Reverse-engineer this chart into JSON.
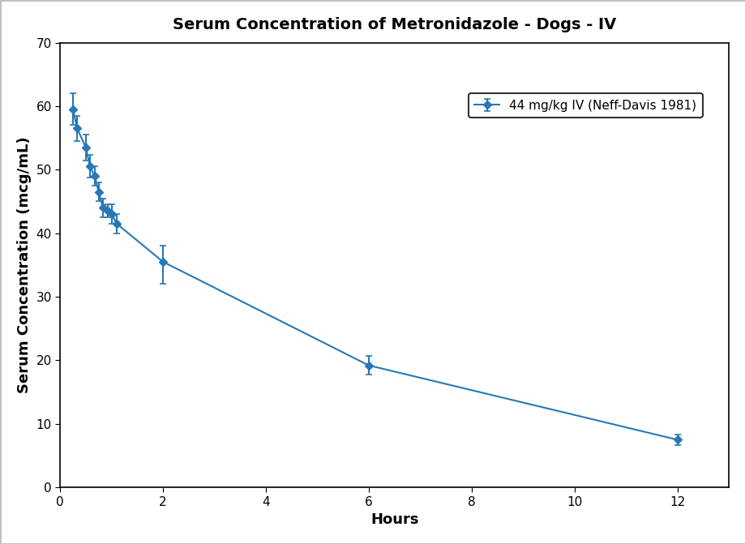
{
  "title": "Serum Concentration of Metronidazole - Dogs - IV",
  "xlabel": "Hours",
  "ylabel": "Serum Concentration (mcg/mL)",
  "legend_label": "44 mg/kg IV (Neff-Davis 1981)",
  "x": [
    0.25,
    0.33,
    0.5,
    0.58,
    0.67,
    0.75,
    0.83,
    0.92,
    1.0,
    1.1,
    2.0,
    6.0,
    12.0
  ],
  "y": [
    59.5,
    56.5,
    53.5,
    50.5,
    49.0,
    46.5,
    44.0,
    43.5,
    43.0,
    41.5,
    35.5,
    19.2,
    7.5
  ],
  "yerr_upper": [
    2.5,
    2.0,
    2.0,
    1.8,
    1.5,
    1.5,
    1.5,
    1.0,
    1.5,
    1.5,
    2.5,
    1.5,
    0.8
  ],
  "yerr_lower": [
    2.5,
    2.0,
    2.0,
    1.8,
    1.5,
    1.5,
    1.5,
    1.0,
    1.5,
    1.5,
    3.5,
    1.5,
    0.8
  ],
  "xlim": [
    0,
    13
  ],
  "ylim": [
    0,
    70
  ],
  "xticks": [
    0,
    2,
    4,
    6,
    8,
    10,
    12
  ],
  "yticks": [
    0,
    10,
    20,
    30,
    40,
    50,
    60,
    70
  ],
  "line_color": "#2878b5",
  "markersize": 5,
  "linewidth": 1.5,
  "background_color": "#ffffff",
  "border_color": "#000000",
  "title_fontsize": 14,
  "label_fontsize": 13,
  "tick_fontsize": 11,
  "legend_fontsize": 11,
  "fig_width": 9.2,
  "fig_height": 6.71,
  "outer_border_color": "#c0c0c0"
}
